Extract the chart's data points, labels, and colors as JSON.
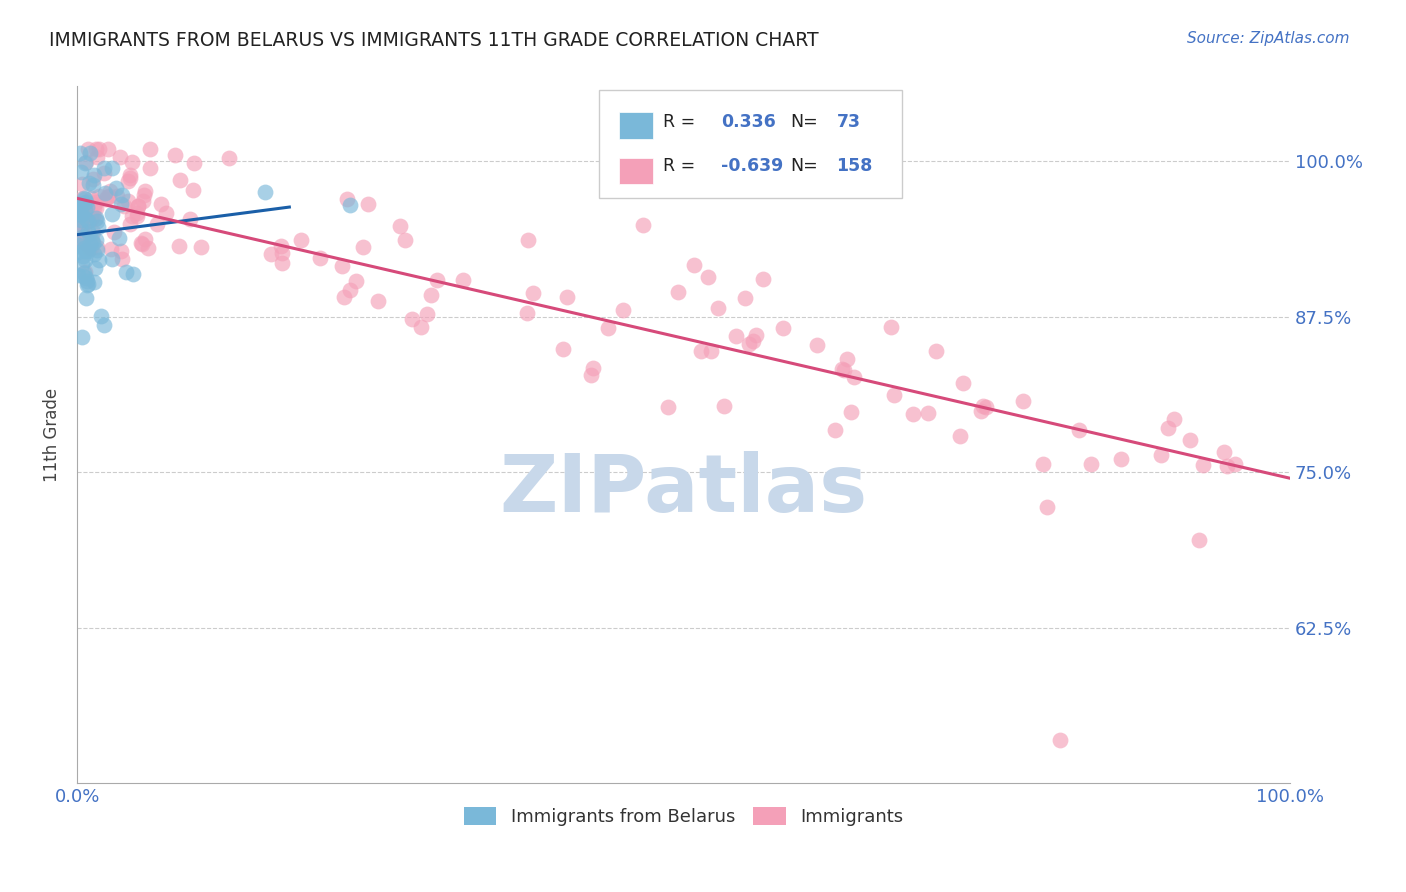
{
  "title": "IMMIGRANTS FROM BELARUS VS IMMIGRANTS 11TH GRADE CORRELATION CHART",
  "source": "Source: ZipAtlas.com",
  "ylabel": "11th Grade",
  "xlim": [
    0.0,
    1.0
  ],
  "ylim": [
    0.5,
    1.06
  ],
  "ytick_vals": [
    0.625,
    0.75,
    0.875,
    1.0
  ],
  "legend_label1": "Immigrants from Belarus",
  "legend_label2": "Immigrants",
  "R1": 0.336,
  "N1": 73,
  "R2": -0.639,
  "N2": 158,
  "color_blue": "#7ab8d9",
  "color_pink": "#f4a0b8",
  "line_color_blue": "#1a5fa8",
  "line_color_pink": "#d64a7a",
  "background_color": "#ffffff",
  "watermark": "ZIPatlas",
  "watermark_color": "#c8d8ea",
  "title_color": "#222222",
  "source_color": "#4472c4",
  "axis_color": "#aaaaaa",
  "grid_color": "#cccccc",
  "tick_color": "#4472c4"
}
